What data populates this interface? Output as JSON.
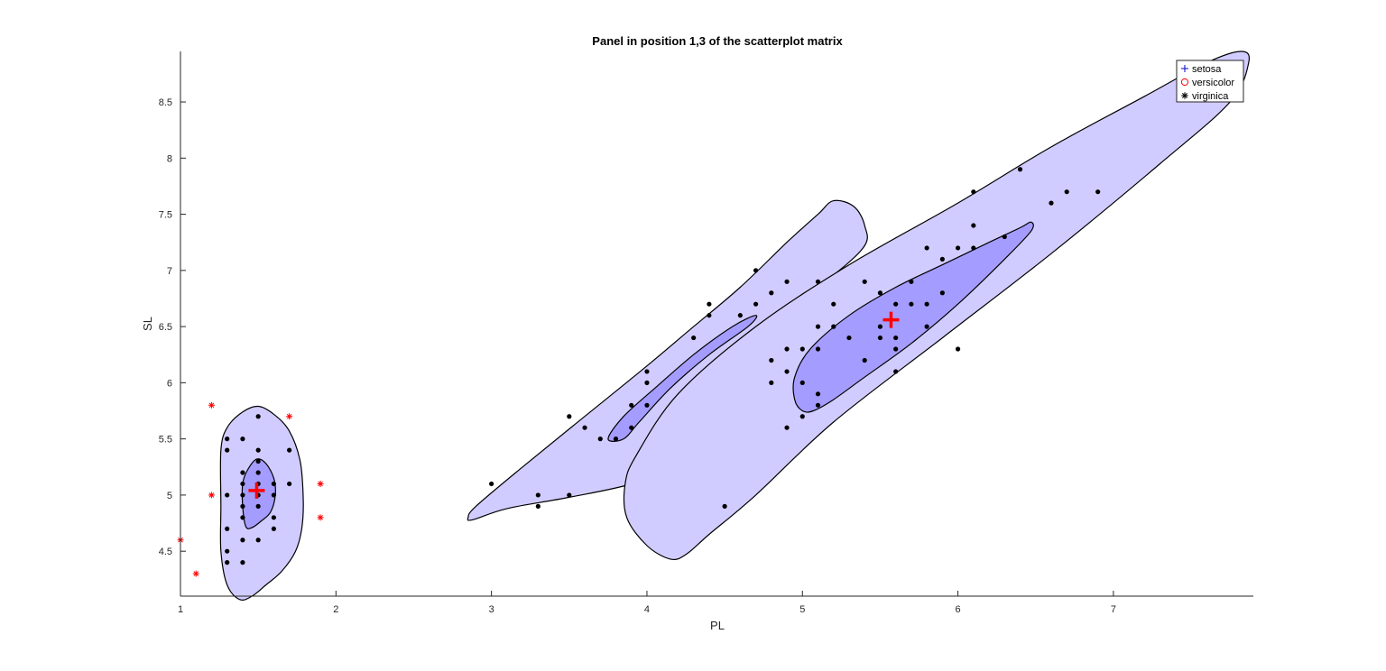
{
  "chart_data": {
    "type": "scatter",
    "title": "Panel in position 1,3 of the scatterplot matrix",
    "xlabel": "PL",
    "ylabel": "SL",
    "xlim": [
      1,
      7.9
    ],
    "ylim": [
      4.1,
      8.95
    ],
    "xticks": [
      1,
      2,
      3,
      4,
      5,
      6,
      7
    ],
    "yticks": [
      4.5,
      5,
      5.5,
      6,
      6.5,
      7,
      7.5,
      8,
      8.5
    ],
    "grid": false,
    "legend_position": "top-right",
    "colors": {
      "outer_region": "#d1ccff",
      "inner_region": "#a59cff",
      "point": "#000000",
      "outlier": "#ff0000",
      "center": "#ff0000",
      "legend_setosa": "#0000cc",
      "legend_versicolor": "#ff0000",
      "legend_virginica": "#000000"
    },
    "legend": [
      {
        "label": "setosa",
        "marker": "+"
      },
      {
        "label": "versicolor",
        "marker": "o"
      },
      {
        "label": "virginica",
        "marker": "*"
      }
    ],
    "series": [
      {
        "name": "setosa",
        "marker": "dot",
        "points": [
          [
            1.3,
            5.5
          ],
          [
            1.3,
            5.4
          ],
          [
            1.3,
            5.0
          ],
          [
            1.3,
            4.7
          ],
          [
            1.3,
            4.5
          ],
          [
            1.3,
            4.4
          ],
          [
            1.4,
            5.5
          ],
          [
            1.4,
            5.2
          ],
          [
            1.4,
            5.1
          ],
          [
            1.4,
            5.0
          ],
          [
            1.4,
            4.9
          ],
          [
            1.4,
            4.8
          ],
          [
            1.4,
            4.6
          ],
          [
            1.4,
            4.4
          ],
          [
            1.5,
            5.7
          ],
          [
            1.5,
            5.4
          ],
          [
            1.5,
            5.3
          ],
          [
            1.5,
            5.2
          ],
          [
            1.5,
            5.1
          ],
          [
            1.5,
            5.0
          ],
          [
            1.5,
            4.9
          ],
          [
            1.5,
            4.6
          ],
          [
            1.6,
            5.1
          ],
          [
            1.6,
            5.0
          ],
          [
            1.6,
            4.8
          ],
          [
            1.6,
            4.7
          ],
          [
            1.7,
            5.4
          ],
          [
            1.7,
            5.1
          ]
        ]
      },
      {
        "name": "setosa outliers",
        "marker": "*",
        "points": [
          [
            1.0,
            4.6
          ],
          [
            1.1,
            4.3
          ],
          [
            1.2,
            5.8
          ],
          [
            1.2,
            5.0
          ],
          [
            1.7,
            5.7
          ],
          [
            1.9,
            5.1
          ],
          [
            1.9,
            4.8
          ]
        ]
      },
      {
        "name": "versicolor",
        "marker": "dot",
        "points": [
          [
            3.0,
            5.1
          ],
          [
            3.3,
            5.0
          ],
          [
            3.3,
            4.9
          ],
          [
            3.5,
            5.7
          ],
          [
            3.5,
            5.0
          ],
          [
            3.6,
            5.6
          ],
          [
            3.7,
            5.5
          ],
          [
            3.8,
            5.5
          ],
          [
            3.9,
            5.8
          ],
          [
            3.9,
            5.6
          ],
          [
            4.0,
            6.1
          ],
          [
            4.0,
            6.0
          ],
          [
            4.0,
            5.8
          ],
          [
            4.3,
            6.4
          ],
          [
            4.4,
            6.7
          ],
          [
            4.4,
            6.6
          ],
          [
            4.5,
            4.9
          ],
          [
            4.6,
            6.6
          ],
          [
            4.7,
            7.0
          ],
          [
            4.7,
            6.7
          ],
          [
            4.8,
            6.8
          ],
          [
            4.8,
            6.2
          ],
          [
            4.8,
            6.0
          ],
          [
            4.9,
            6.9
          ],
          [
            4.9,
            6.3
          ],
          [
            4.9,
            6.1
          ],
          [
            4.9,
            5.6
          ]
        ]
      },
      {
        "name": "virginica",
        "marker": "dot",
        "points": [
          [
            5.0,
            6.3
          ],
          [
            5.0,
            6.0
          ],
          [
            5.0,
            5.7
          ],
          [
            5.1,
            6.9
          ],
          [
            5.1,
            6.5
          ],
          [
            5.1,
            6.3
          ],
          [
            5.1,
            5.9
          ],
          [
            5.1,
            5.8
          ],
          [
            5.2,
            6.7
          ],
          [
            5.2,
            6.5
          ],
          [
            5.3,
            6.4
          ],
          [
            5.4,
            6.9
          ],
          [
            5.4,
            6.2
          ],
          [
            5.5,
            6.8
          ],
          [
            5.5,
            6.5
          ],
          [
            5.5,
            6.4
          ],
          [
            5.6,
            6.7
          ],
          [
            5.6,
            6.4
          ],
          [
            5.6,
            6.3
          ],
          [
            5.6,
            6.1
          ],
          [
            5.7,
            6.9
          ],
          [
            5.7,
            6.7
          ],
          [
            5.8,
            7.2
          ],
          [
            5.8,
            6.7
          ],
          [
            5.8,
            6.5
          ],
          [
            5.9,
            7.1
          ],
          [
            5.9,
            6.8
          ],
          [
            6.0,
            7.2
          ],
          [
            6.0,
            6.3
          ],
          [
            6.1,
            7.7
          ],
          [
            6.1,
            7.4
          ],
          [
            6.1,
            7.2
          ],
          [
            6.3,
            7.3
          ],
          [
            6.4,
            7.9
          ],
          [
            6.6,
            7.6
          ],
          [
            6.7,
            7.7
          ],
          [
            6.9,
            7.7
          ]
        ]
      }
    ],
    "centers": [
      {
        "name": "setosa center",
        "x": 1.49,
        "y": 5.04
      },
      {
        "name": "virginica center",
        "x": 5.57,
        "y": 6.56
      }
    ],
    "regions": [
      {
        "name": "setosa outer contour",
        "level": "outer",
        "path": [
          [
            1.38,
            4.07
          ],
          [
            1.3,
            4.2
          ],
          [
            1.26,
            4.5
          ],
          [
            1.26,
            4.9
          ],
          [
            1.26,
            5.4
          ],
          [
            1.3,
            5.6
          ],
          [
            1.4,
            5.74
          ],
          [
            1.5,
            5.79
          ],
          [
            1.6,
            5.72
          ],
          [
            1.7,
            5.57
          ],
          [
            1.77,
            5.3
          ],
          [
            1.79,
            4.95
          ],
          [
            1.78,
            4.7
          ],
          [
            1.74,
            4.5
          ],
          [
            1.65,
            4.32
          ],
          [
            1.55,
            4.2
          ],
          [
            1.46,
            4.1
          ]
        ]
      },
      {
        "name": "setosa inner contour",
        "level": "inner",
        "path": [
          [
            1.42,
            4.72
          ],
          [
            1.4,
            4.9
          ],
          [
            1.4,
            5.1
          ],
          [
            1.43,
            5.22
          ],
          [
            1.49,
            5.32
          ],
          [
            1.55,
            5.28
          ],
          [
            1.6,
            5.15
          ],
          [
            1.61,
            5.0
          ],
          [
            1.58,
            4.85
          ],
          [
            1.52,
            4.77
          ],
          [
            1.46,
            4.71
          ]
        ]
      },
      {
        "name": "versicolor outer contour",
        "level": "outer",
        "path": [
          [
            2.85,
            4.8
          ],
          [
            2.9,
            4.9
          ],
          [
            3.2,
            5.25
          ],
          [
            3.6,
            5.7
          ],
          [
            4.0,
            6.15
          ],
          [
            4.3,
            6.5
          ],
          [
            4.6,
            6.85
          ],
          [
            4.9,
            7.25
          ],
          [
            5.1,
            7.5
          ],
          [
            5.2,
            7.62
          ],
          [
            5.33,
            7.57
          ],
          [
            5.4,
            7.4
          ],
          [
            5.39,
            7.2
          ],
          [
            5.1,
            6.85
          ],
          [
            4.7,
            6.45
          ],
          [
            4.4,
            6.0
          ],
          [
            4.2,
            5.55
          ],
          [
            4.1,
            5.25
          ],
          [
            3.9,
            5.1
          ],
          [
            3.5,
            4.98
          ],
          [
            3.1,
            4.88
          ],
          [
            2.88,
            4.78
          ]
        ]
      },
      {
        "name": "versicolor inner contour",
        "level": "inner",
        "path": [
          [
            3.75,
            5.5
          ],
          [
            3.85,
            5.7
          ],
          [
            4.05,
            5.95
          ],
          [
            4.3,
            6.25
          ],
          [
            4.55,
            6.5
          ],
          [
            4.7,
            6.6
          ],
          [
            4.65,
            6.5
          ],
          [
            4.4,
            6.25
          ],
          [
            4.15,
            5.95
          ],
          [
            3.95,
            5.65
          ],
          [
            3.85,
            5.5
          ]
        ]
      },
      {
        "name": "virginica outer contour",
        "level": "outer",
        "path": [
          [
            4.15,
            4.43
          ],
          [
            4.0,
            4.55
          ],
          [
            3.87,
            4.8
          ],
          [
            3.86,
            5.1
          ],
          [
            3.93,
            5.35
          ],
          [
            4.2,
            5.9
          ],
          [
            4.7,
            6.5
          ],
          [
            5.3,
            7.05
          ],
          [
            6.0,
            7.6
          ],
          [
            6.6,
            8.1
          ],
          [
            7.2,
            8.55
          ],
          [
            7.6,
            8.85
          ],
          [
            7.82,
            8.95
          ],
          [
            7.87,
            8.85
          ],
          [
            7.75,
            8.5
          ],
          [
            7.3,
            7.95
          ],
          [
            6.6,
            7.15
          ],
          [
            5.9,
            6.4
          ],
          [
            5.2,
            5.65
          ],
          [
            4.7,
            5.0
          ],
          [
            4.4,
            4.65
          ],
          [
            4.25,
            4.47
          ]
        ]
      },
      {
        "name": "virginica inner contour",
        "level": "inner",
        "path": [
          [
            5.0,
            5.75
          ],
          [
            4.95,
            5.85
          ],
          [
            4.95,
            6.05
          ],
          [
            5.05,
            6.3
          ],
          [
            5.3,
            6.6
          ],
          [
            5.6,
            6.85
          ],
          [
            5.9,
            7.05
          ],
          [
            6.2,
            7.25
          ],
          [
            6.4,
            7.38
          ],
          [
            6.47,
            7.43
          ],
          [
            6.47,
            7.35
          ],
          [
            6.3,
            7.1
          ],
          [
            6.0,
            6.7
          ],
          [
            5.7,
            6.35
          ],
          [
            5.4,
            6.05
          ],
          [
            5.2,
            5.85
          ],
          [
            5.07,
            5.75
          ]
        ]
      }
    ]
  }
}
